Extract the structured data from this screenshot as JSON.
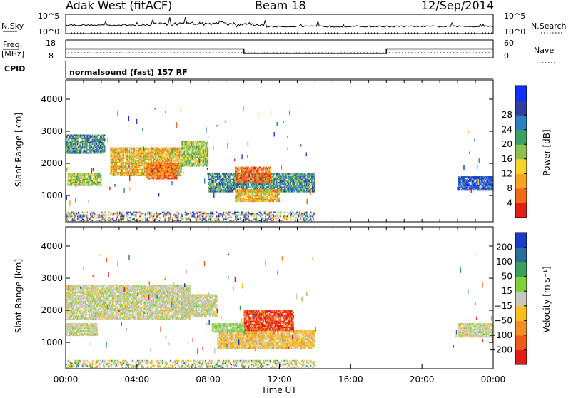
{
  "header": {
    "station": "Adak West (fitACF)",
    "beam": "Beam 18",
    "date": "12/Sep/2014"
  },
  "nsky_panel": {
    "left_label": "N.Sky",
    "right_label": "N.Search",
    "ticks_left": [
      "10^5",
      "10^0"
    ],
    "ticks_right": [
      "10^5",
      "10^0"
    ]
  },
  "freq_panel": {
    "left_label": "Freq.",
    "left_unit": "[MHz]",
    "right_label": "Nave",
    "ticks_left": [
      "18",
      "8"
    ],
    "ticks_right": [
      "60",
      "0"
    ],
    "freq_steps": [
      {
        "from_hour": 0,
        "to_hour": 10,
        "mhz": 13
      },
      {
        "from_hour": 10,
        "to_hour": 18,
        "mhz": 10.5
      },
      {
        "from_hour": 18,
        "to_hour": 24,
        "mhz": 13
      }
    ]
  },
  "cpid": {
    "label": "CPID",
    "text": "normalsound (fast) 157 RF"
  },
  "time_axis": {
    "title": "Time UT",
    "ticks": [
      "00:00",
      "04:00",
      "08:00",
      "12:00",
      "16:00",
      "20:00",
      "00:00"
    ]
  },
  "chart_data": [
    {
      "type": "heatmap",
      "title": "",
      "xlabel": "Time UT",
      "ylabel": "Slant Range [km]",
      "xlim": [
        0,
        24
      ],
      "ylim": [
        180,
        4600
      ],
      "y_ticks": [
        "1000",
        "2000",
        "3000",
        "4000"
      ],
      "colorbar": {
        "label": "Power [dB]",
        "ticks": [
          "4",
          "8",
          "12",
          "16",
          "20",
          "24",
          "28"
        ],
        "colors": [
          "#1030ff",
          "#2f3f9f",
          "#2e7fbf",
          "#3b9f63",
          "#8fc04e",
          "#f7d22b",
          "#f7a520",
          "#f06a18",
          "#e41e14"
        ]
      },
      "regions": [
        {
          "t0": 0.0,
          "t1": 2.2,
          "r0": 2300,
          "r1": 2900,
          "level": "low-mid"
        },
        {
          "t0": 0.1,
          "t1": 2.0,
          "r0": 1300,
          "r1": 1700,
          "level": "mid"
        },
        {
          "t0": 2.5,
          "t1": 6.5,
          "r0": 1600,
          "r1": 2500,
          "level": "mid-high"
        },
        {
          "t0": 4.5,
          "t1": 6.3,
          "r0": 1500,
          "r1": 2000,
          "level": "high"
        },
        {
          "t0": 6.5,
          "t1": 8.0,
          "r0": 1900,
          "r1": 2700,
          "level": "mid"
        },
        {
          "t0": 8.0,
          "t1": 14.0,
          "r0": 1100,
          "r1": 1700,
          "level": "low-mid"
        },
        {
          "t0": 9.5,
          "t1": 11.5,
          "r0": 1400,
          "r1": 1900,
          "level": "high"
        },
        {
          "t0": 9.5,
          "t1": 12.0,
          "r0": 800,
          "r1": 1200,
          "level": "mid-high"
        },
        {
          "t0": 22.0,
          "t1": 24.0,
          "r0": 1150,
          "r1": 1600,
          "level": "low"
        },
        {
          "t0": 0.0,
          "t1": 14.0,
          "r0": 200,
          "r1": 500,
          "level": "scatter"
        }
      ]
    },
    {
      "type": "heatmap",
      "title": "",
      "xlabel": "Time UT",
      "ylabel": "Slant Range [km]",
      "xlim": [
        0,
        24
      ],
      "ylim": [
        180,
        4600
      ],
      "y_ticks": [
        "1000",
        "2000",
        "3000",
        "4000"
      ],
      "colorbar": {
        "label": "Velocity [m s⁻¹]",
        "ticks": [
          "200",
          "100",
          "50",
          "15",
          "−15",
          "−50",
          "−100",
          "−200"
        ],
        "colors": [
          "#1a3cc8",
          "#2a6f9a",
          "#3a9f5a",
          "#7fcf3f",
          "#c8c8c0",
          "#f7c020",
          "#f09020",
          "#f05a18",
          "#e41a14"
        ]
      },
      "regions": [
        {
          "t0": 0.0,
          "t1": 7.0,
          "r0": 1700,
          "r1": 2800,
          "level": "grey"
        },
        {
          "t0": 0.0,
          "t1": 1.8,
          "r0": 1200,
          "r1": 1600,
          "level": "grey"
        },
        {
          "t0": 6.5,
          "t1": 8.5,
          "r0": 1800,
          "r1": 2500,
          "level": "grey"
        },
        {
          "t0": 8.5,
          "t1": 14.0,
          "r0": 800,
          "r1": 1400,
          "level": "neg50"
        },
        {
          "t0": 10.0,
          "t1": 12.8,
          "r0": 1350,
          "r1": 2000,
          "level": "neg200"
        },
        {
          "t0": 8.2,
          "t1": 10.0,
          "r0": 1300,
          "r1": 1600,
          "level": "pos15"
        },
        {
          "t0": 22.0,
          "t1": 24.0,
          "r0": 1150,
          "r1": 1600,
          "level": "grey"
        },
        {
          "t0": 0.0,
          "t1": 14.0,
          "r0": 200,
          "r1": 450,
          "level": "scatter"
        }
      ]
    }
  ]
}
